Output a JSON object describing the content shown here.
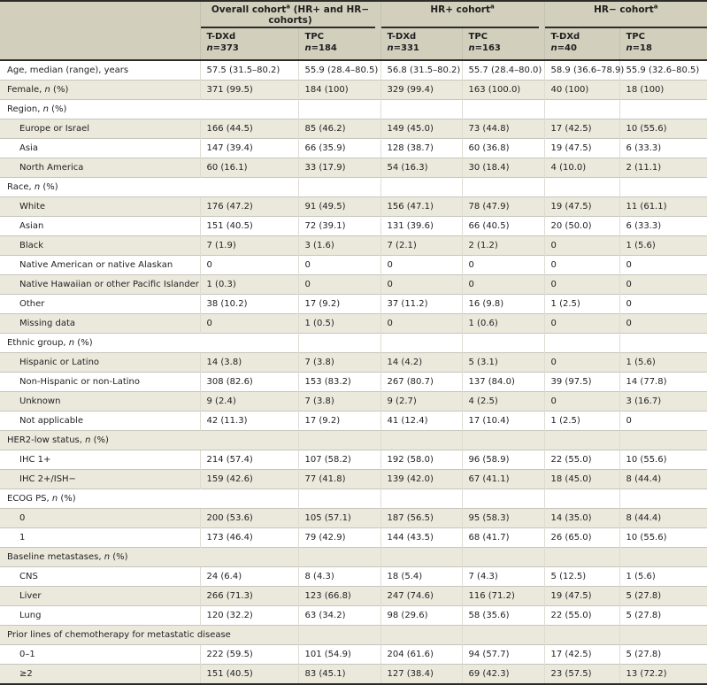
{
  "table": {
    "column_groups": [
      {
        "label": "Overall cohort",
        "sup": "a",
        "suffix": " (HR+ and HR− cohorts)"
      },
      {
        "label": "HR+ cohort",
        "sup": "a",
        "suffix": ""
      },
      {
        "label": "HR− cohort",
        "sup": "a",
        "suffix": ""
      }
    ],
    "sub_columns": [
      {
        "drug": "T-DXd",
        "n": "373"
      },
      {
        "drug": "TPC",
        "n": "184"
      },
      {
        "drug": "T-DXd",
        "n": "331"
      },
      {
        "drug": "TPC",
        "n": "163"
      },
      {
        "drug": "T-DXd",
        "n": "40"
      },
      {
        "drug": "TPC",
        "n": "18"
      }
    ],
    "rows": [
      {
        "label": "Age, median (range), years",
        "indent": false,
        "section": false,
        "values": [
          "57.5 (31.5–80.2)",
          "55.9 (28.4–80.5)",
          "56.8 (31.5–80.2)",
          "55.7 (28.4–80.0)",
          "58.9 (36.6–78.9)",
          "55.9 (32.6–80.5)"
        ]
      },
      {
        "label": "Female, n (%)",
        "indent": false,
        "section": false,
        "values": [
          "371 (99.5)",
          "184 (100)",
          "329 (99.4)",
          "163 (100.0)",
          "40 (100)",
          "18 (100)"
        ]
      },
      {
        "label": "Region, n (%)",
        "indent": false,
        "section": true,
        "values": []
      },
      {
        "label": "Europe or Israel",
        "indent": true,
        "section": false,
        "values": [
          "166 (44.5)",
          "85 (46.2)",
          "149 (45.0)",
          "73 (44.8)",
          "17 (42.5)",
          "10 (55.6)"
        ]
      },
      {
        "label": "Asia",
        "indent": true,
        "section": false,
        "values": [
          "147 (39.4)",
          "66 (35.9)",
          "128 (38.7)",
          "60 (36.8)",
          "19 (47.5)",
          "6 (33.3)"
        ]
      },
      {
        "label": "North America",
        "indent": true,
        "section": false,
        "values": [
          "60 (16.1)",
          "33 (17.9)",
          "54 (16.3)",
          "30 (18.4)",
          "4 (10.0)",
          "2 (11.1)"
        ]
      },
      {
        "label": "Race, n (%)",
        "indent": false,
        "section": true,
        "values": []
      },
      {
        "label": "White",
        "indent": true,
        "section": false,
        "values": [
          "176 (47.2)",
          "91 (49.5)",
          "156 (47.1)",
          "78 (47.9)",
          "19 (47.5)",
          "11 (61.1)"
        ]
      },
      {
        "label": "Asian",
        "indent": true,
        "section": false,
        "values": [
          "151 (40.5)",
          "72 (39.1)",
          "131 (39.6)",
          "66 (40.5)",
          "20 (50.0)",
          "6 (33.3)"
        ]
      },
      {
        "label": "Black",
        "indent": true,
        "section": false,
        "values": [
          "7 (1.9)",
          "3 (1.6)",
          "7 (2.1)",
          "2 (1.2)",
          "0",
          "1 (5.6)"
        ]
      },
      {
        "label": "Native American or native Alaskan",
        "indent": true,
        "section": false,
        "values": [
          "0",
          "0",
          "0",
          "0",
          "0",
          "0"
        ]
      },
      {
        "label": "Native Hawaiian or other Pacific Islander",
        "indent": true,
        "section": false,
        "values": [
          "1 (0.3)",
          "0",
          "0",
          "0",
          "0",
          "0"
        ]
      },
      {
        "label": "Other",
        "indent": true,
        "section": false,
        "values": [
          "38 (10.2)",
          "17 (9.2)",
          "37 (11.2)",
          "16 (9.8)",
          "1 (2.5)",
          "0"
        ]
      },
      {
        "label": "Missing data",
        "indent": true,
        "section": false,
        "values": [
          "0",
          "1 (0.5)",
          "0",
          "1 (0.6)",
          "0",
          "0"
        ]
      },
      {
        "label": "Ethnic group, n (%)",
        "indent": false,
        "section": true,
        "values": []
      },
      {
        "label": "Hispanic or Latino",
        "indent": true,
        "section": false,
        "values": [
          "14 (3.8)",
          "7 (3.8)",
          "14 (4.2)",
          "5 (3.1)",
          "0",
          "1 (5.6)"
        ]
      },
      {
        "label": "Non-Hispanic or non-Latino",
        "indent": true,
        "section": false,
        "values": [
          "308 (82.6)",
          "153 (83.2)",
          "267 (80.7)",
          "137 (84.0)",
          "39 (97.5)",
          "14 (77.8)"
        ]
      },
      {
        "label": "Unknown",
        "indent": true,
        "section": false,
        "values": [
          "9 (2.4)",
          "7 (3.8)",
          "9 (2.7)",
          "4 (2.5)",
          "0",
          "3 (16.7)"
        ]
      },
      {
        "label": "Not applicable",
        "indent": true,
        "section": false,
        "values": [
          "42 (11.3)",
          "17 (9.2)",
          "41 (12.4)",
          "17 (10.4)",
          "1 (2.5)",
          "0"
        ]
      },
      {
        "label": "HER2-low status, n (%)",
        "indent": false,
        "section": true,
        "values": []
      },
      {
        "label": "IHC 1+",
        "indent": true,
        "section": false,
        "values": [
          "214 (57.4)",
          "107 (58.2)",
          "192 (58.0)",
          "96 (58.9)",
          "22 (55.0)",
          "10 (55.6)"
        ]
      },
      {
        "label": "IHC 2+/ISH−",
        "indent": true,
        "section": false,
        "values": [
          "159 (42.6)",
          "77 (41.8)",
          "139 (42.0)",
          "67 (41.1)",
          "18 (45.0)",
          "8 (44.4)"
        ]
      },
      {
        "label": "ECOG PS, n (%)",
        "indent": false,
        "section": true,
        "values": []
      },
      {
        "label": "0",
        "indent": true,
        "section": false,
        "values": [
          "200 (53.6)",
          "105 (57.1)",
          "187 (56.5)",
          "95 (58.3)",
          "14 (35.0)",
          "8 (44.4)"
        ]
      },
      {
        "label": "1",
        "indent": true,
        "section": false,
        "values": [
          "173 (46.4)",
          "79 (42.9)",
          "144 (43.5)",
          "68 (41.7)",
          "26 (65.0)",
          "10 (55.6)"
        ]
      },
      {
        "label": "Baseline metastases, n (%)",
        "indent": false,
        "section": true,
        "values": []
      },
      {
        "label": "CNS",
        "indent": true,
        "section": false,
        "values": [
          "24 (6.4)",
          "8 (4.3)",
          "18 (5.4)",
          "7 (4.3)",
          "5 (12.5)",
          "1 (5.6)"
        ]
      },
      {
        "label": "Liver",
        "indent": true,
        "section": false,
        "values": [
          "266 (71.3)",
          "123 (66.8)",
          "247 (74.6)",
          "116 (71.2)",
          "19 (47.5)",
          "5 (27.8)"
        ]
      },
      {
        "label": "Lung",
        "indent": true,
        "section": false,
        "values": [
          "120 (32.2)",
          "63 (34.2)",
          "98 (29.6)",
          "58 (35.6)",
          "22 (55.0)",
          "5 (27.8)"
        ]
      },
      {
        "label": "Prior lines of chemotherapy for metastatic disease",
        "indent": false,
        "section": true,
        "values": []
      },
      {
        "label": "0–1",
        "indent": true,
        "section": false,
        "values": [
          "222 (59.5)",
          "101 (54.9)",
          "204 (61.6)",
          "94 (57.7)",
          "17 (42.5)",
          "5 (27.8)"
        ]
      },
      {
        "label": "≥2",
        "indent": true,
        "section": false,
        "values": [
          "151 (40.5)",
          "83 (45.1)",
          "127 (38.4)",
          "69 (42.3)",
          "23 (57.5)",
          "13 (72.2)"
        ]
      }
    ],
    "colors": {
      "header_bg": "#d2cfbd",
      "row_shaded_bg": "#ebe9dc",
      "dark_rule": "#2c2c2a",
      "light_rule": "#c6c5bc"
    }
  }
}
